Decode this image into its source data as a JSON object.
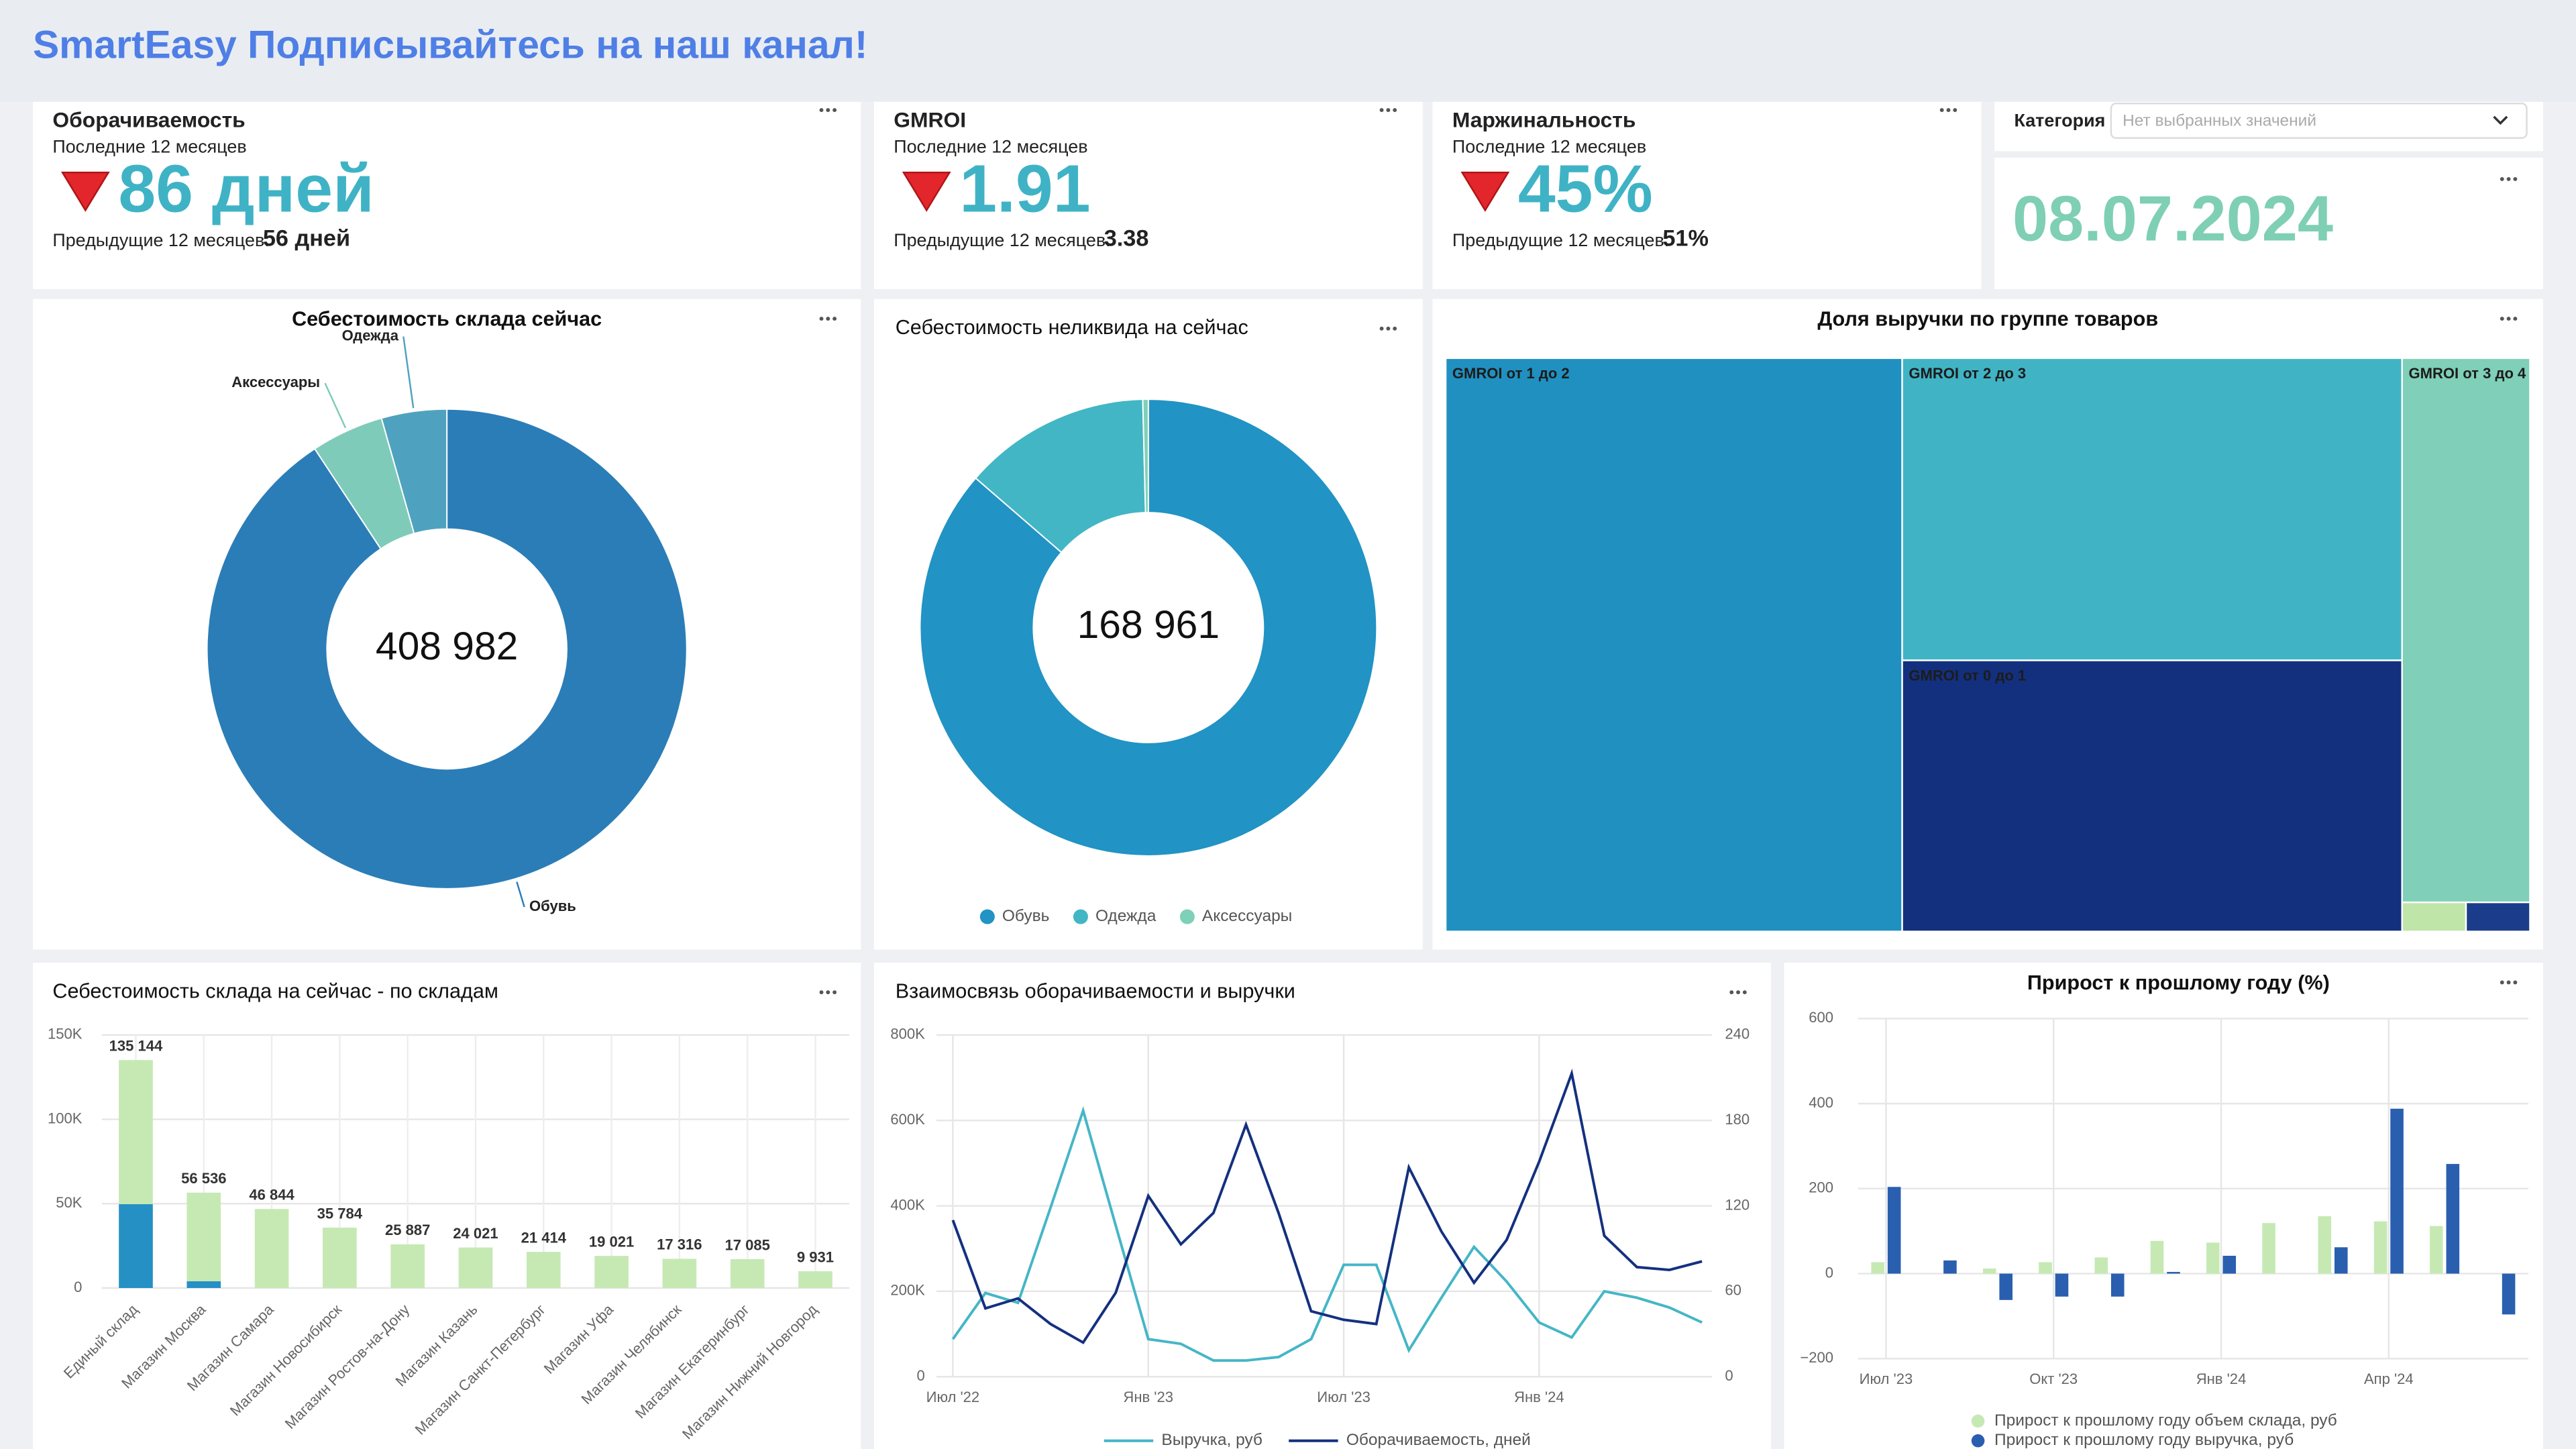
{
  "header": {
    "title": "SmartEasy Подписывайтесь на наш канал!"
  },
  "kpis": [
    {
      "title": "Оборачиваемость",
      "subtitle": "Последние 12 месяцев",
      "value": "86 дней",
      "previous_label": "Предыдущие 12 месяцев:",
      "previous_value": "56 дней"
    },
    {
      "title": "GMROI",
      "subtitle": "Последние 12 месяцев",
      "value": "1.91",
      "previous_label": "Предыдущие 12 месяцев:",
      "previous_value": "3.38"
    },
    {
      "title": "Маржинальность",
      "subtitle": "Последние 12 месяцев",
      "value": "45%",
      "previous_label": "Предыдущие 12 месяцев:",
      "previous_value": "51%"
    }
  ],
  "filter": {
    "label": "Категория",
    "placeholder": "Нет выбранных значений"
  },
  "date": "08.07.2024",
  "chart_data": [
    {
      "type": "donut",
      "title": "Себестоимость склада сейчас",
      "center_label": "408 982",
      "categories": [
        "Обувь",
        "Аксессуары",
        "Одежда"
      ],
      "values": [
        371000,
        20000,
        17982
      ],
      "colors": [
        "#2b7db7",
        "#7fcbb9",
        "#4fa2bf"
      ],
      "labels": "outside"
    },
    {
      "type": "donut",
      "title": "Себестоимость неликвида на сейчас",
      "center_label": "168 961",
      "categories": [
        "Обувь",
        "Одежда",
        "Аксессуары"
      ],
      "values": [
        145900,
        22400,
        661
      ],
      "colors": [
        "#2193c4",
        "#42b6c4",
        "#7fd0b8"
      ],
      "legend": "bottom"
    },
    {
      "type": "treemap",
      "title": "Доля выручки по группе товаров",
      "categories": [
        "GMROI от 1 до 2",
        "GMROI от 2 до 3",
        "GMROI от 0 до 1",
        "GMROI от 3 до 4",
        null,
        null
      ],
      "values": [
        42.1,
        24.3,
        21.8,
        11.2,
        0.3,
        0.3
      ],
      "colors": [
        "#2090c0",
        "#40b4c4",
        "#13307f",
        "#80cfb8",
        "#bfe5a8",
        "#1a3c8a"
      ]
    },
    {
      "type": "bar",
      "title": "Себестоимость склада на сейчас - по складам",
      "stacked": true,
      "categories": [
        "Единый склад",
        "Магазин Москва",
        "Магазин Самара",
        "Магазин Новосибирск",
        "Магазин Ростов-на-Дону",
        "Магазин Казань",
        "Магазин Санкт-Петербург",
        "Магазин Уфа",
        "Магазин Челябинск",
        "Магазин Екатеринбург",
        "Магазин Нижний Новгород"
      ],
      "series": [
        {
          "color": "#2590c4",
          "values": [
            49700,
            4000,
            null,
            null,
            null,
            null,
            null,
            null,
            null,
            null,
            null
          ]
        },
        {
          "color": "#c6e9b4",
          "values": [
            85444,
            52536,
            46844,
            35784,
            25887,
            24021,
            21414,
            19021,
            17316,
            17085,
            9931
          ]
        }
      ],
      "total_labels": [
        "135 144",
        "56 536",
        "46 844",
        "35 784",
        "25 887",
        "24 021",
        "21 414",
        "19 021",
        "17 316",
        "17 085",
        "9 931"
      ],
      "ylim": [
        0,
        150000
      ],
      "yticks": [
        0,
        {
          "value": 50000,
          "label": "50K"
        },
        {
          "value": 100000,
          "label": "100K"
        },
        {
          "value": 150000,
          "label": "150K"
        }
      ],
      "grid": true
    },
    {
      "type": "line",
      "title": "Взаимосвязь оборачиваемости и выручки",
      "categories": [
        "Июл '22",
        null,
        null,
        null,
        null,
        null,
        "Янв '23",
        null,
        null,
        null,
        null,
        null,
        "Июл '23",
        null,
        null,
        null,
        null,
        null,
        "Янв '24",
        null,
        null,
        null,
        null,
        null
      ],
      "series": [
        {
          "name": "Выручка, руб",
          "color": "#45b6c6",
          "values": [
            88000,
            196000,
            173000,
            396000,
            623000,
            354000,
            88000,
            77000,
            38000,
            38000,
            46000,
            88000,
            262000,
            262000,
            62000,
            185000,
            304000,
            223000,
            127000,
            92000,
            200000,
            185000,
            162000,
            127000
          ]
        },
        {
          "name": "Оборачиваемость, дней",
          "color": "#14307f",
          "axis": "y2",
          "values": [
            110,
            48,
            55,
            37,
            24,
            59,
            127,
            93,
            115,
            177,
            115,
            46,
            40,
            37,
            147,
            102,
            66,
            96,
            151,
            213,
            99,
            77,
            75,
            81
          ]
        }
      ],
      "ylim": [
        0,
        800000
      ],
      "yticks": [
        0,
        {
          "value": 200000,
          "label": "200K"
        },
        {
          "value": 400000,
          "label": "400K"
        },
        {
          "value": 600000,
          "label": "600K"
        },
        {
          "value": 800000,
          "label": "800K"
        }
      ],
      "y2lim": [
        0,
        240
      ],
      "y2ticks": [
        0,
        60,
        120,
        180,
        240
      ],
      "grid": true,
      "legend": "bottom"
    },
    {
      "type": "bar",
      "title": "Прирост к прошлому году (%)",
      "stacked": false,
      "categories": [
        "Июл '23",
        null,
        null,
        "Окт '23",
        null,
        null,
        "Янв '24",
        null,
        null,
        "Апр '24",
        null,
        null
      ],
      "series": [
        {
          "name": "Прирост к прошлому году объем склада, руб",
          "color": "#c6e9b4",
          "values": [
            27,
            null,
            12,
            27,
            38,
            77,
            73,
            119,
            135,
            123,
            112,
            null
          ]
        },
        {
          "name": "Прирост к прошлому году выручка, руб",
          "color": "#2a5fb0",
          "values": [
            204,
            31,
            -62,
            -54,
            -54,
            4,
            42,
            null,
            62,
            388,
            258,
            -96
          ]
        }
      ],
      "ylim": [
        -200,
        600
      ],
      "yticks": [
        {
          "value": -200,
          "label": "−200"
        },
        0,
        200,
        400,
        600
      ],
      "grid": true,
      "legend": "bottom"
    }
  ]
}
